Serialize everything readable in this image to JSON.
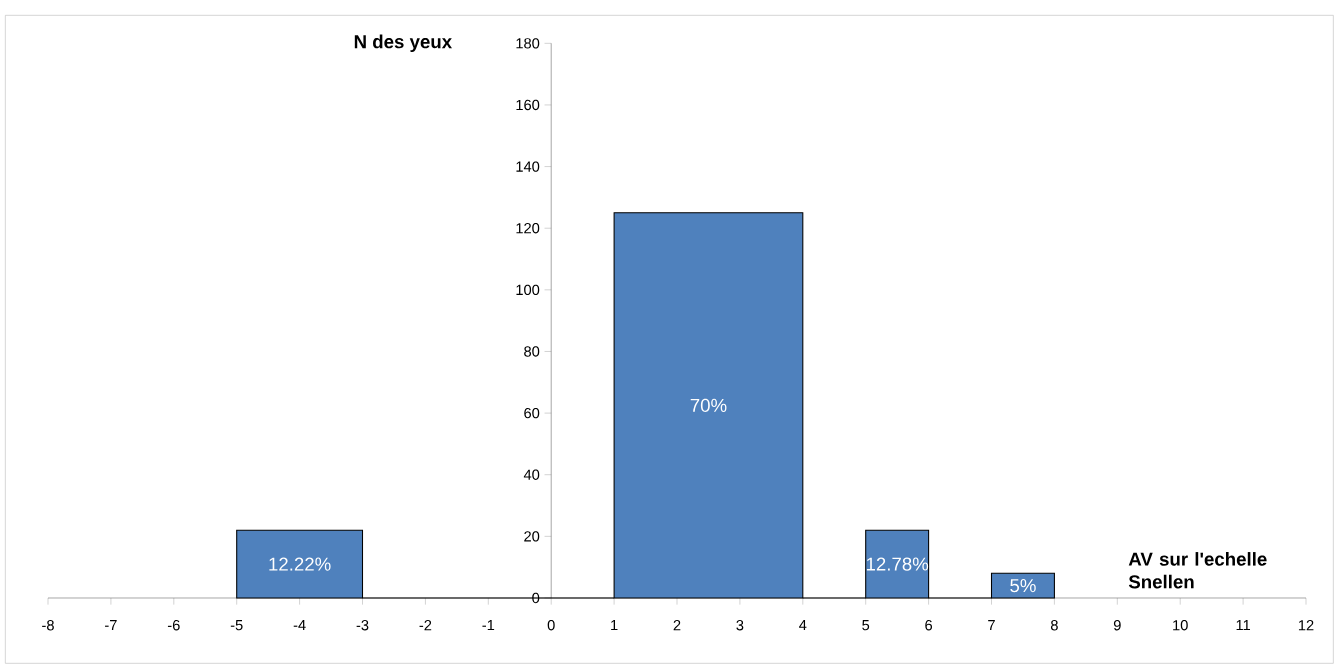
{
  "chart_data": {
    "type": "histogram",
    "xlabel": "AV sur l'echelle Snellen",
    "ylabel": "N des yeux",
    "bins": [
      -5,
      -3,
      1,
      4,
      5,
      6,
      7,
      8
    ],
    "values": [
      22,
      0,
      125,
      0,
      22,
      0,
      8
    ],
    "annotations": [
      "12.22%",
      "70%",
      "12.78%",
      "5%"
    ],
    "color": "#4f81bd",
    "xlim": [
      -8,
      12
    ],
    "xticks": [
      -8,
      -7,
      -6,
      -5,
      -4,
      -3,
      -2,
      -1,
      0,
      1,
      2,
      3,
      4,
      5,
      6,
      7,
      8,
      9,
      10,
      11,
      12
    ],
    "ylim": [
      0,
      180
    ],
    "yticks": [
      0,
      20,
      40,
      60,
      80,
      100,
      120,
      140,
      160,
      180
    ]
  }
}
